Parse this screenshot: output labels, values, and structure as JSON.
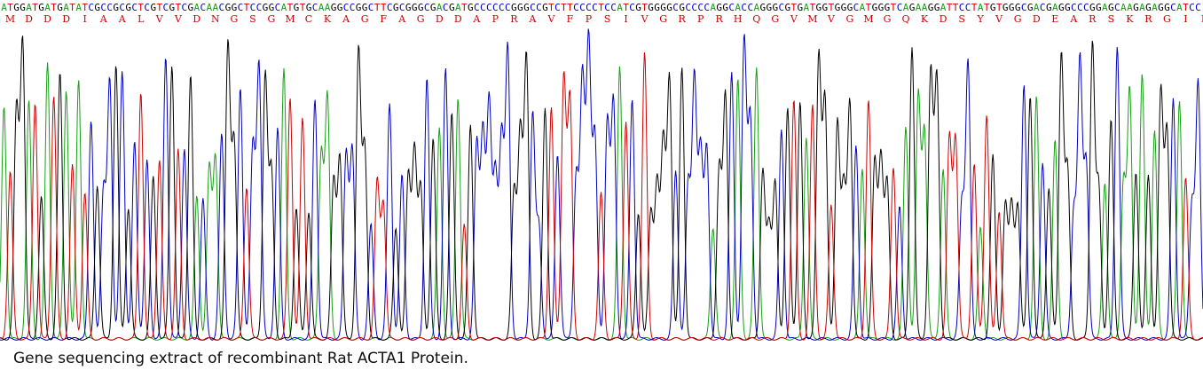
{
  "caption": "Gene sequencing extract of recombinant Rat ACTA1 Protein.",
  "chart_data": {
    "type": "line",
    "title": "",
    "xlabel": "",
    "ylabel": "",
    "grid": false,
    "legend": "none",
    "nucleotide_sequence": "ATGGATGATGATATCGCCGCGCTCGTCGTCGACAACGGCTCCGGCATGTGCAAGGCCGGCTTCGCGGGCGACGATGCCCCCCGGGCCGTCTTCCCCTCCATCGTGGGGCGCCCCAGGCACCAGGGCGTGATGGTGGGCATGGGTCAGAAGGATTCCTATGTGGGCGACGAGGCCCGGAGCAAGAGAGGCATCC",
    "amino_acid_sequence": [
      "M",
      "D",
      "D",
      "D",
      "I",
      "A",
      "A",
      "L",
      "V",
      "V",
      "D",
      "N",
      "G",
      "S",
      "G",
      "M",
      "C",
      "K",
      "A",
      "G",
      "F",
      "A",
      "G",
      "D",
      "D",
      "A",
      "P",
      "R",
      "A",
      "V",
      "F",
      "P",
      "S",
      "I",
      "V",
      "G",
      "R",
      "P",
      "R",
      "H",
      "Q",
      "G",
      "V",
      "M",
      "V",
      "G",
      "M",
      "G",
      "Q",
      "K",
      "D",
      "S",
      "Y",
      "V",
      "G",
      "D",
      "E",
      "A",
      "R",
      "S",
      "K",
      "R",
      "G",
      "I",
      "L"
    ],
    "base_colors": {
      "A": "#16a016",
      "C": "#0000c0",
      "G": "#000000",
      "T": "#d00000"
    },
    "amino_acid_color": "#d00000",
    "y_range": [
      0,
      1
    ]
  }
}
